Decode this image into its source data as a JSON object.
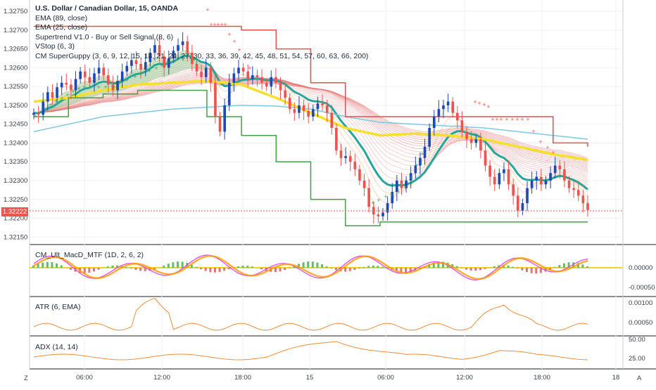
{
  "header": {
    "title": "U.S. Dollar / Canadian Dollar, 15, OANDA",
    "indicators": [
      "EMA (89, close)",
      "EMA (25, close)",
      "Supertrend V1.0 - Buy or Sell Signal (8, 6)",
      "VStop (6, 3)",
      "CM SuperGuppy (3, 6, 9, 12, 15, 18, 21, 24, 27, 30, 33, 36, 39, 42, 45, 48, 51, 54, 57, 60, 63, 66, 200)"
    ]
  },
  "price_axis": {
    "ticks": [
      "1.32750",
      "1.32700",
      "1.32650",
      "1.32600",
      "1.32550",
      "1.32500",
      "1.32450",
      "1.32400",
      "1.32350",
      "1.32300",
      "1.32250",
      "1.32200",
      "1.32150"
    ],
    "last_price": "1.32222"
  },
  "panes": {
    "macd": {
      "name": "CM_Ult_MacD_MTF (1D, 2, 6, 2)",
      "ticks": [
        "0.00000",
        "-0.00050"
      ]
    },
    "atr": {
      "name": "ATR (6, EMA)",
      "ticks": [
        "0.00100",
        "0.00050"
      ]
    },
    "adx": {
      "name": "ADX (14, 14)",
      "ticks": [
        "50.00",
        "25.00"
      ]
    }
  },
  "time_axis": {
    "labels": [
      "06:00",
      "12:00",
      "18:00",
      "15",
      "06:00",
      "12:00",
      "18:00",
      "18"
    ]
  },
  "corner": {
    "left_button": "Z",
    "right_button": "A"
  },
  "colors": {
    "bull": "#1c49b3",
    "bear": "#ef5350",
    "ema89": "#7ec8e3",
    "ema25_yellow": "#f7e02a",
    "teal": "#26a69a",
    "vstop": "#43a047",
    "supertrend": "#e05252",
    "macd_zero": "#f7d21f"
  },
  "chart_data": [
    {
      "type": "line",
      "title": "U.S. Dollar / Canadian Dollar, 15, OANDA",
      "ylim": [
        1.3213,
        1.3278
      ],
      "x_labels": [
        "06:00",
        "12:00",
        "18:00",
        "15",
        "06:00",
        "12:00",
        "18:00",
        "18"
      ],
      "candles": [
        1.3248,
        1.32475,
        1.3251,
        1.32535,
        1.3252,
        1.32548,
        1.3256,
        1.32555,
        1.3254,
        1.3257,
        1.3259,
        1.32575,
        1.3256,
        1.32585,
        1.326,
        1.3258,
        1.32555,
        1.3254,
        1.32565,
        1.3259,
        1.32605,
        1.3262,
        1.3261,
        1.32595,
        1.32615,
        1.3264,
        1.3266,
        1.3263,
        1.326,
        1.32625,
        1.32645,
        1.3266,
        1.3267,
        1.3264,
        1.3261,
        1.3259,
        1.32575,
        1.326,
        1.3256,
        1.3247,
        1.3243,
        1.325,
        1.3256,
        1.32585,
        1.326,
        1.3259,
        1.3257,
        1.3258,
        1.32575,
        1.3256,
        1.3255,
        1.32575,
        1.3256,
        1.3254,
        1.3252,
        1.3249,
        1.3248,
        1.325,
        1.32485,
        1.3247,
        1.3249,
        1.32505,
        1.325,
        1.3248,
        1.3244,
        1.3238,
        1.3236,
        1.32365,
        1.3235,
        1.3233,
        1.323,
        1.3228,
        1.3223,
        1.3221,
        1.32205,
        1.32215,
        1.3224,
        1.3227,
        1.323,
        1.3228,
        1.323,
        1.3232,
        1.3234,
        1.3236,
        1.3239,
        1.3244,
        1.3247,
        1.3249,
        1.325,
        1.3251,
        1.3248,
        1.3246,
        1.3243,
        1.3241,
        1.324,
        1.3241,
        1.3238,
        1.3234,
        1.3231,
        1.3229,
        1.3232,
        1.3233,
        1.3229,
        1.3226,
        1.3222,
        1.3224,
        1.3228,
        1.323,
        1.3231,
        1.3229,
        1.323,
        1.3232,
        1.3234,
        1.3233,
        1.323,
        1.3228,
        1.32275,
        1.3226,
        1.3224,
        1.32222
      ],
      "series": [
        {
          "name": "EMA (89, close)",
          "values": [
            1.3243,
            1.3245,
            1.3247,
            1.3248,
            1.3249,
            1.32495,
            1.325,
            1.32498,
            1.3249,
            1.3247,
            1.32455,
            1.3245,
            1.32445,
            1.3244,
            1.3243,
            1.3242,
            1.3241
          ]
        },
        {
          "name": "EMA (25, close)",
          "values": [
            1.3251,
            1.3252,
            1.3254,
            1.32555,
            1.3256,
            1.32565,
            1.32555,
            1.3252,
            1.3248,
            1.3244,
            1.3242,
            1.32425,
            1.3242,
            1.3241,
            1.3239,
            1.3237,
            1.32355
          ]
        },
        {
          "name": "VStop (6, 3)",
          "values": [
            1.3247,
            1.3252,
            1.3253,
            1.3254,
            1.3254,
            1.3247,
            1.3242,
            1.3235,
            1.3225,
            1.3218,
            1.3219,
            1.3219,
            1.3219,
            1.3219,
            1.3219,
            1.3219,
            1.3219
          ]
        },
        {
          "name": "Supertrend V1.0 - Buy or Sell Signal (8, 6)",
          "values": [
            1.3271,
            1.3271,
            1.3271,
            1.3271,
            1.3271,
            1.3271,
            1.327,
            1.3265,
            1.3256,
            1.3247,
            1.3247,
            1.3247,
            1.3247,
            1.3247,
            1.3247,
            1.324,
            1.3239
          ]
        }
      ]
    }
  ]
}
